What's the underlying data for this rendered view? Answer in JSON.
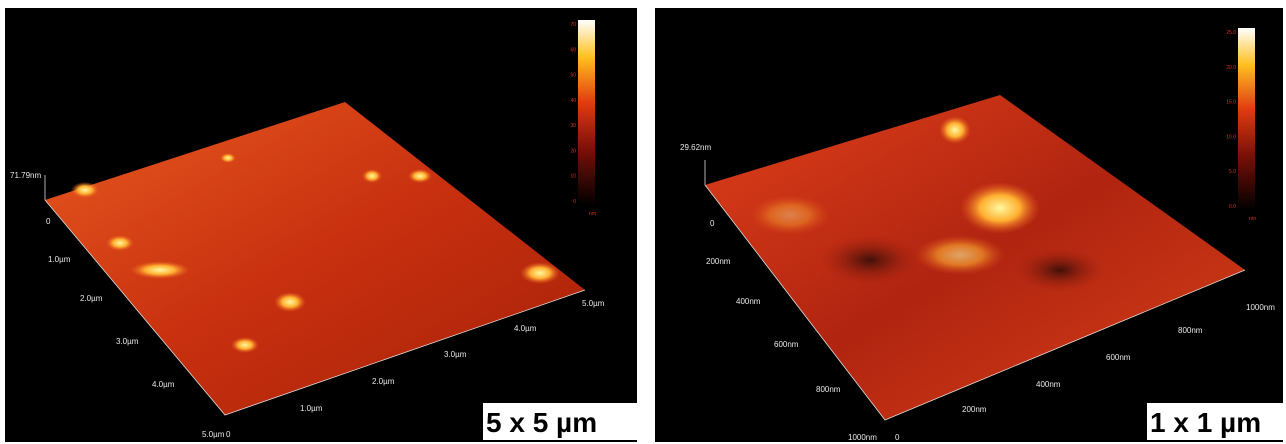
{
  "panels": [
    {
      "z_label": "71.79nm",
      "origin": "0",
      "left_axis": [
        "0",
        "1.0µm",
        "2.0µm",
        "3.0µm",
        "4.0µm",
        "5.0µm"
      ],
      "right_axis": [
        "1.0µm",
        "2.0µm",
        "3.0µm",
        "4.0µm",
        "5.0µm"
      ],
      "colorbar": {
        "ticks": [
          "70",
          "60",
          "50",
          "40",
          "30",
          "20",
          "10",
          "0"
        ],
        "unit": "nm"
      },
      "size_label": "5 x 5 µm"
    },
    {
      "z_label": "29.62nm",
      "origin": "0",
      "left_axis": [
        "0",
        "200nm",
        "400nm",
        "600nm",
        "800nm",
        "1000nm"
      ],
      "right_axis": [
        "200nm",
        "400nm",
        "600nm",
        "800nm",
        "1000nm"
      ],
      "colorbar": {
        "ticks": [
          "25.0",
          "20.0",
          "15.0",
          "10.0",
          "5.0",
          "0.0"
        ],
        "unit": "nm"
      },
      "size_label": "1 x 1 µm"
    }
  ]
}
